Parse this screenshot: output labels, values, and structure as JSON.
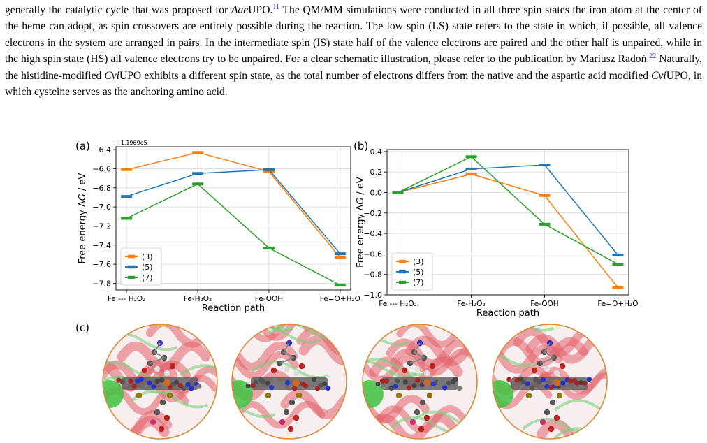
{
  "paragraph": [
    {
      "t": "generally the catalytic cycle that was proposed for "
    },
    {
      "t": "Aae",
      "i": true
    },
    {
      "t": "UPO."
    },
    {
      "t": "11",
      "sup": true
    },
    {
      "t": " The QM/MM simulations were conducted in all three spin states the iron atom at the center of the heme can adopt, as spin crossovers are entirely possible during the reaction. The low spin (LS) state refers to the state in which, if possible, all valence electrons in the system are arranged in pairs. In the intermediate spin (IS) state half of the valence electrons are paired and the other half is unpaired, while in the high spin state (HS) all valence electrons try to be unpaired. For a clear schematic illustration, please refer to the publication by Mariusz Radoń."
    },
    {
      "t": "22",
      "sup": true
    },
    {
      "t": " Naturally, the histidine-modified "
    },
    {
      "t": "Cvi",
      "i": true
    },
    {
      "t": "UPO exhibits a different spin state, as the total number of electrons differs from the native and the aspartic acid modified "
    },
    {
      "t": "Cvi",
      "i": true
    },
    {
      "t": "UPO, in which cysteine serves as the anchoring amino acid."
    }
  ],
  "labels": {
    "a": "(a)",
    "b": "(b)",
    "c": "(c)"
  },
  "colors": {
    "s3": "#ff7f0e",
    "s5": "#1f77b4",
    "s7": "#2ca02c"
  },
  "chart_data": [
    {
      "type": "line",
      "panel": "(a)",
      "offset_label": "−1.1969e5",
      "ylabel_prefix": "Free energy Δ",
      "ylabel_var": "G",
      "ylabel_suffix": " / eV",
      "xlabel": "Reaction path",
      "categories": [
        "Fe --- H₂O₂",
        "Fe-H₂O₂",
        "Fe-OOH",
        "Fe=O+H₂O"
      ],
      "ylim": [
        -7.87,
        -6.37
      ],
      "yticks": [
        -6.4,
        -6.6,
        -6.8,
        -7.0,
        -7.2,
        -7.4,
        -7.6,
        -7.8
      ],
      "ytick_labels": [
        "−6.4",
        "−6.6",
        "−6.8",
        "−7.0",
        "−7.2",
        "−7.4",
        "−7.6",
        "−7.8"
      ],
      "grid": true,
      "legend": "lower-left",
      "series": [
        {
          "name": "(3)",
          "color": "#ff7f0e",
          "values": [
            -6.61,
            -6.43,
            -6.63,
            -7.53
          ]
        },
        {
          "name": "(5)",
          "color": "#1f77b4",
          "values": [
            -6.89,
            -6.65,
            -6.61,
            -7.49
          ]
        },
        {
          "name": "(7)",
          "color": "#2ca02c",
          "values": [
            -7.12,
            -6.76,
            -7.43,
            -7.82
          ]
        }
      ]
    },
    {
      "type": "line",
      "panel": "(b)",
      "offset_label": "",
      "ylabel_prefix": "Free energy Δ",
      "ylabel_var": "G",
      "ylabel_suffix": " / eV",
      "xlabel": "Reaction path",
      "categories": [
        "Fe --- H₂O₂",
        "Fe-H₂O₂",
        "Fe-OOH",
        "Fe=O+H₂O"
      ],
      "ylim": [
        -1.0,
        0.42
      ],
      "yticks": [
        0.4,
        0.2,
        0.0,
        -0.2,
        -0.4,
        -0.6,
        -0.8,
        -1.0
      ],
      "ytick_labels": [
        "0.4",
        "0.2",
        "0.0",
        "−0.2",
        "−0.4",
        "−0.6",
        "−0.8",
        "−1.0"
      ],
      "grid": true,
      "legend": "lower-left",
      "series": [
        {
          "name": "(3)",
          "color": "#ff7f0e",
          "values": [
            0.0,
            0.18,
            -0.03,
            -0.93
          ]
        },
        {
          "name": "(5)",
          "color": "#1f77b4",
          "values": [
            0.0,
            0.23,
            0.27,
            -0.61
          ]
        },
        {
          "name": "(7)",
          "color": "#2ca02c",
          "values": [
            0.0,
            0.35,
            -0.31,
            -0.7
          ]
        }
      ]
    }
  ],
  "structures": {
    "count": 4,
    "descriptions": [
      "Fe --- H₂O₂ structure",
      "Fe-H₂O₂ structure",
      "Fe-OOH structure",
      "Fe=O+H₂O structure"
    ]
  }
}
